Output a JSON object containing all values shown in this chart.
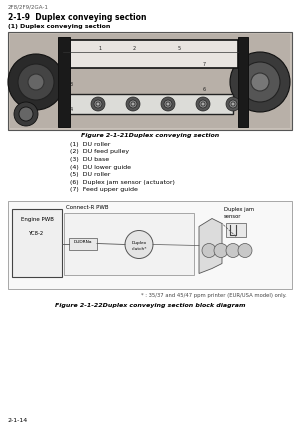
{
  "page_id": "2F8/2F9/2GA-1",
  "section_num": "2-1-9",
  "section_title": "Duplex conveying section",
  "subsection": "(1) Duplex conveying section",
  "fig1_caption": "Figure 2-1-21Duplex conveying section",
  "numbered_items": [
    "(1)  DU roller",
    "(2)  DU feed pulley",
    "(3)  DU base",
    "(4)  DU lower guide",
    "(5)  DU roller",
    "(6)  Duplex jam sensor (actuator)",
    "(7)  Feed upper guide"
  ],
  "fig2_caption": "Figure 2-1-22Duplex conveying section block diagram",
  "footnote": "* : 35/37 and 45/47 ppm printer (EUR/USA model) only.",
  "page_num": "2-1-14",
  "bg_color": "#ffffff",
  "text_color": "#000000"
}
